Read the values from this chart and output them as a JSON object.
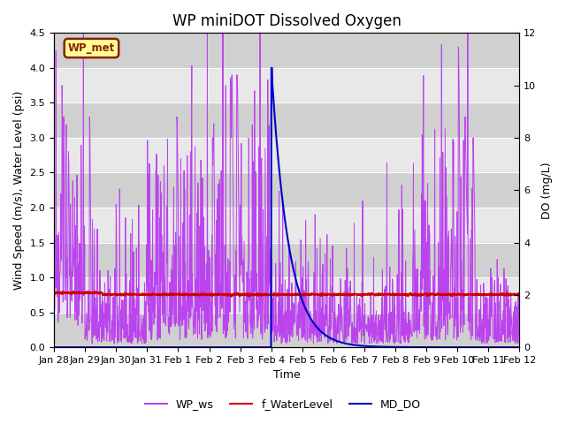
{
  "title": "WP miniDOT Dissolved Oxygen",
  "xlabel": "Time",
  "ylabel_left": "Wind Speed (m/s), Water Level (psi)",
  "ylabel_right": "DO (mg/L)",
  "ylim_left": [
    0,
    4.5
  ],
  "ylim_right": [
    0,
    12
  ],
  "yticks_left": [
    0.0,
    0.5,
    1.0,
    1.5,
    2.0,
    2.5,
    3.0,
    3.5,
    4.0,
    4.5
  ],
  "yticks_right": [
    0,
    2,
    4,
    6,
    8,
    10,
    12
  ],
  "xtick_labels": [
    "Jan 28",
    "Jan 29",
    "Jan 30",
    "Jan 31",
    "Feb 1",
    "Feb 2",
    "Feb 3",
    "Feb 4",
    "Feb 5",
    "Feb 6",
    "Feb 7",
    "Feb 8",
    "Feb 9",
    "Feb 10",
    "Feb 11",
    "Feb 12"
  ],
  "legend_labels": [
    "WP_ws",
    "f_WaterLevel",
    "MD_DO"
  ],
  "legend_colors": [
    "#bb44ee",
    "#cc0000",
    "#0000cc"
  ],
  "wp_met_label": "WP_met",
  "wp_met_bg": "#ffff99",
  "wp_met_border": "#882200",
  "wp_ws_color": "#bb44ee",
  "f_water_color": "#cc0000",
  "md_do_color": "#0000cc",
  "bg_color": "#e8e8e8",
  "bg_band_color": "#d0d0d0",
  "title_fontsize": 12,
  "axis_fontsize": 9,
  "tick_fontsize": 8
}
